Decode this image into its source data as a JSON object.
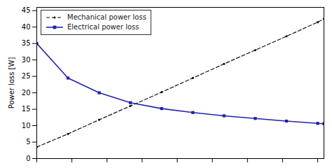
{
  "chart_data": {
    "type": "line",
    "ylabel": "Power loss [W]",
    "xlim": [
      0,
      9.2
    ],
    "ylim": [
      0,
      46
    ],
    "xticks": [
      0,
      1.125,
      2.25,
      3.375,
      4.5,
      5.625,
      6.75,
      7.875,
      9
    ],
    "yticks": [
      0,
      5,
      10,
      15,
      20,
      25,
      30,
      35,
      40,
      45
    ],
    "tick_labels": "y",
    "grid": false,
    "legend": "upper left",
    "series": [
      {
        "name": "Mechanical power loss",
        "color": "#111111",
        "line_style": "dashed",
        "marker": "dot",
        "x": [
          0,
          1,
          2,
          3,
          4,
          5,
          6,
          7,
          8,
          9,
          9.2
        ],
        "values": [
          3.5,
          7.5,
          11.8,
          16.0,
          20.2,
          24.5,
          28.8,
          33.0,
          37.2,
          41.5,
          42.5
        ]
      },
      {
        "name": "Electrical power loss",
        "color": "#2222AA",
        "line_style": "solid",
        "marker": "square",
        "x": [
          0,
          1,
          2,
          3,
          4,
          5,
          6,
          7,
          8,
          9,
          9.2
        ],
        "values": [
          35.0,
          24.5,
          20.0,
          17.0,
          15.2,
          14.0,
          13.0,
          12.2,
          11.4,
          10.7,
          10.6
        ]
      }
    ]
  }
}
